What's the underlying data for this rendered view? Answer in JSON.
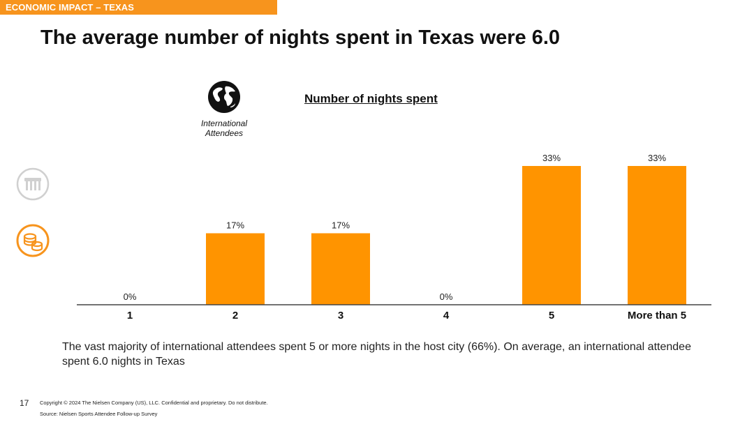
{
  "header": {
    "banner": "ECONOMIC IMPACT – TEXAS",
    "title": "The average number of nights spent in Texas were 6.0"
  },
  "segment": {
    "label": "International Attendees",
    "icon": "globe-icon"
  },
  "sidebar": {
    "icons": [
      {
        "name": "trophies-icon",
        "state": "inactive"
      },
      {
        "name": "coins-icon",
        "state": "active"
      }
    ]
  },
  "colors": {
    "accent": "#f7941d",
    "bar": "#ff9400",
    "inactive_icon": "#d0d0d0"
  },
  "chart_data": {
    "type": "bar",
    "title": "Number of nights spent",
    "categories": [
      "1",
      "2",
      "3",
      "4",
      "5",
      "More than 5"
    ],
    "values": [
      0,
      17,
      17,
      0,
      33,
      33
    ],
    "data_labels": [
      "0%",
      "17%",
      "17%",
      "0%",
      "33%",
      "33%"
    ],
    "unit": "%",
    "ylim": [
      0,
      33
    ],
    "grid": false,
    "legend": "none"
  },
  "summary": "The vast majority of international attendees spent 5 or more nights in the host city (66%). On average, an international attendee spent 6.0 nights in Texas",
  "footer": {
    "page_number": "17",
    "copyright": "Copyright © 2024 The Nielsen Company (US), LLC. Confidential and proprietary. Do not distribute.",
    "source": "Source: Nielsen Sports Attendee Follow-up Survey"
  }
}
